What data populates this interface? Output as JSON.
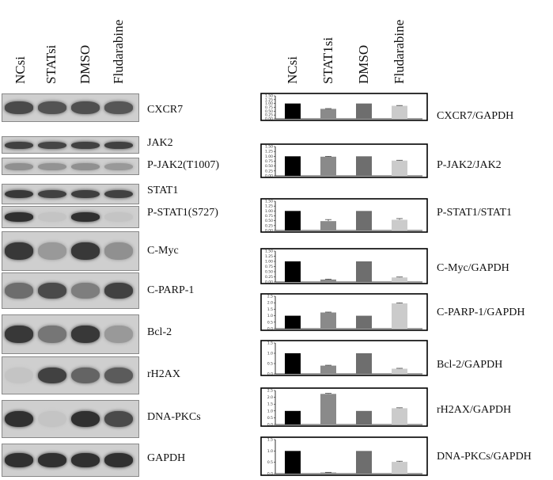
{
  "lanes": [
    "NCsi",
    "STATsi",
    "DMSO",
    "Fludarabine"
  ],
  "chart_lanes": [
    "NCsi",
    "STAT1si",
    "DMSO",
    "Fludarabine"
  ],
  "bar_colors": [
    "#000000",
    "#8a8a8a",
    "#6e6e6e",
    "#cbcbcb"
  ],
  "blots": [
    {
      "label": "CXCR7",
      "intensity": [
        0.75,
        0.7,
        0.72,
        0.68
      ]
    },
    {
      "label": "JAK2",
      "intensity": [
        0.8,
        0.78,
        0.8,
        0.8
      ]
    },
    {
      "label": "P-JAK2(T1007)",
      "intensity": [
        0.35,
        0.33,
        0.35,
        0.3
      ]
    },
    {
      "label": "STAT1",
      "intensity": [
        0.85,
        0.8,
        0.82,
        0.8
      ]
    },
    {
      "label": "P-STAT1(S727)",
      "intensity": [
        0.9,
        0.05,
        0.9,
        0.05
      ]
    },
    {
      "label": "C-Myc",
      "intensity": [
        0.85,
        0.3,
        0.85,
        0.35
      ]
    },
    {
      "label": "C-PARP-1",
      "intensity": [
        0.55,
        0.75,
        0.45,
        0.8
      ]
    },
    {
      "label": "Bcl-2",
      "intensity": [
        0.85,
        0.5,
        0.85,
        0.3
      ]
    },
    {
      "label": "rH2AX",
      "intensity": [
        0.05,
        0.8,
        0.6,
        0.65
      ]
    },
    {
      "label": "DNA-PKCs",
      "intensity": [
        0.9,
        0.05,
        0.9,
        0.75
      ]
    },
    {
      "label": "GAPDH",
      "intensity": [
        0.9,
        0.9,
        0.9,
        0.9
      ]
    }
  ],
  "chart_data": [
    {
      "type": "bar",
      "label": "CXCR7/GAPDH",
      "ylim": [
        0,
        1.5
      ],
      "yticks": [
        "0.00",
        "0.25",
        "0.50",
        "0.75",
        "1.00",
        "1.25",
        "1.50"
      ],
      "values": [
        1.0,
        0.65,
        1.0,
        0.85
      ],
      "errors": [
        0,
        0.02,
        0,
        0.02
      ]
    },
    {
      "type": "bar",
      "label": "P-JAK2/JAK2",
      "ylim": [
        0,
        1.5
      ],
      "yticks": [
        "0.00",
        "0.25",
        "0.50",
        "0.75",
        "1.00",
        "1.25",
        "1.50"
      ],
      "values": [
        1.0,
        0.98,
        1.0,
        0.78
      ],
      "errors": [
        0,
        0.02,
        0,
        0.02
      ]
    },
    {
      "type": "bar",
      "label": "P-STAT1/STAT1",
      "ylim": [
        0,
        1.5
      ],
      "yticks": [
        "0.00",
        "0.25",
        "0.50",
        "0.75",
        "1.00",
        "1.25",
        "1.50"
      ],
      "values": [
        1.0,
        0.48,
        1.0,
        0.55
      ],
      "errors": [
        0,
        0.08,
        0,
        0.06
      ]
    },
    {
      "type": "bar",
      "label": "C-Myc/GAPDH",
      "ylim": [
        0,
        1.5
      ],
      "yticks": [
        "0.00",
        "0.25",
        "0.50",
        "0.75",
        "1.00",
        "1.25",
        "1.50"
      ],
      "values": [
        1.0,
        0.12,
        1.0,
        0.22
      ],
      "errors": [
        0,
        0.02,
        0,
        0.02
      ]
    },
    {
      "type": "bar",
      "label": "C-PARP-1/GAPDH",
      "ylim": [
        0,
        2.5
      ],
      "yticks": [
        "0.0",
        "0.5",
        "1.0",
        "1.5",
        "2.0",
        "2.5"
      ],
      "values": [
        1.0,
        1.25,
        1.0,
        1.95
      ],
      "errors": [
        0,
        0.03,
        0,
        0.04
      ]
    },
    {
      "type": "bar",
      "label": "Bcl-2/GAPDH",
      "ylim": [
        0,
        1.5
      ],
      "yticks": [
        "0.0",
        "0.5",
        "1.0",
        "1.5"
      ],
      "values": [
        1.0,
        0.4,
        1.0,
        0.25
      ],
      "errors": [
        0,
        0.02,
        0,
        0.02
      ]
    },
    {
      "type": "bar",
      "label": "rH2AX/GAPDH",
      "ylim": [
        0,
        2.5
      ],
      "yticks": [
        "0.0",
        "0.5",
        "1.0",
        "1.5",
        "2.0",
        "2.5"
      ],
      "values": [
        1.0,
        2.25,
        1.0,
        1.2
      ],
      "errors": [
        0,
        0.04,
        0,
        0.03
      ]
    },
    {
      "type": "bar",
      "label": "DNA-PKCs/GAPDH",
      "ylim": [
        0,
        1.5
      ],
      "yticks": [
        "0.0",
        "0.5",
        "1.0",
        "1.5"
      ],
      "values": [
        1.0,
        0.05,
        1.0,
        0.52
      ],
      "errors": [
        0,
        0.01,
        0,
        0.03
      ]
    }
  ]
}
